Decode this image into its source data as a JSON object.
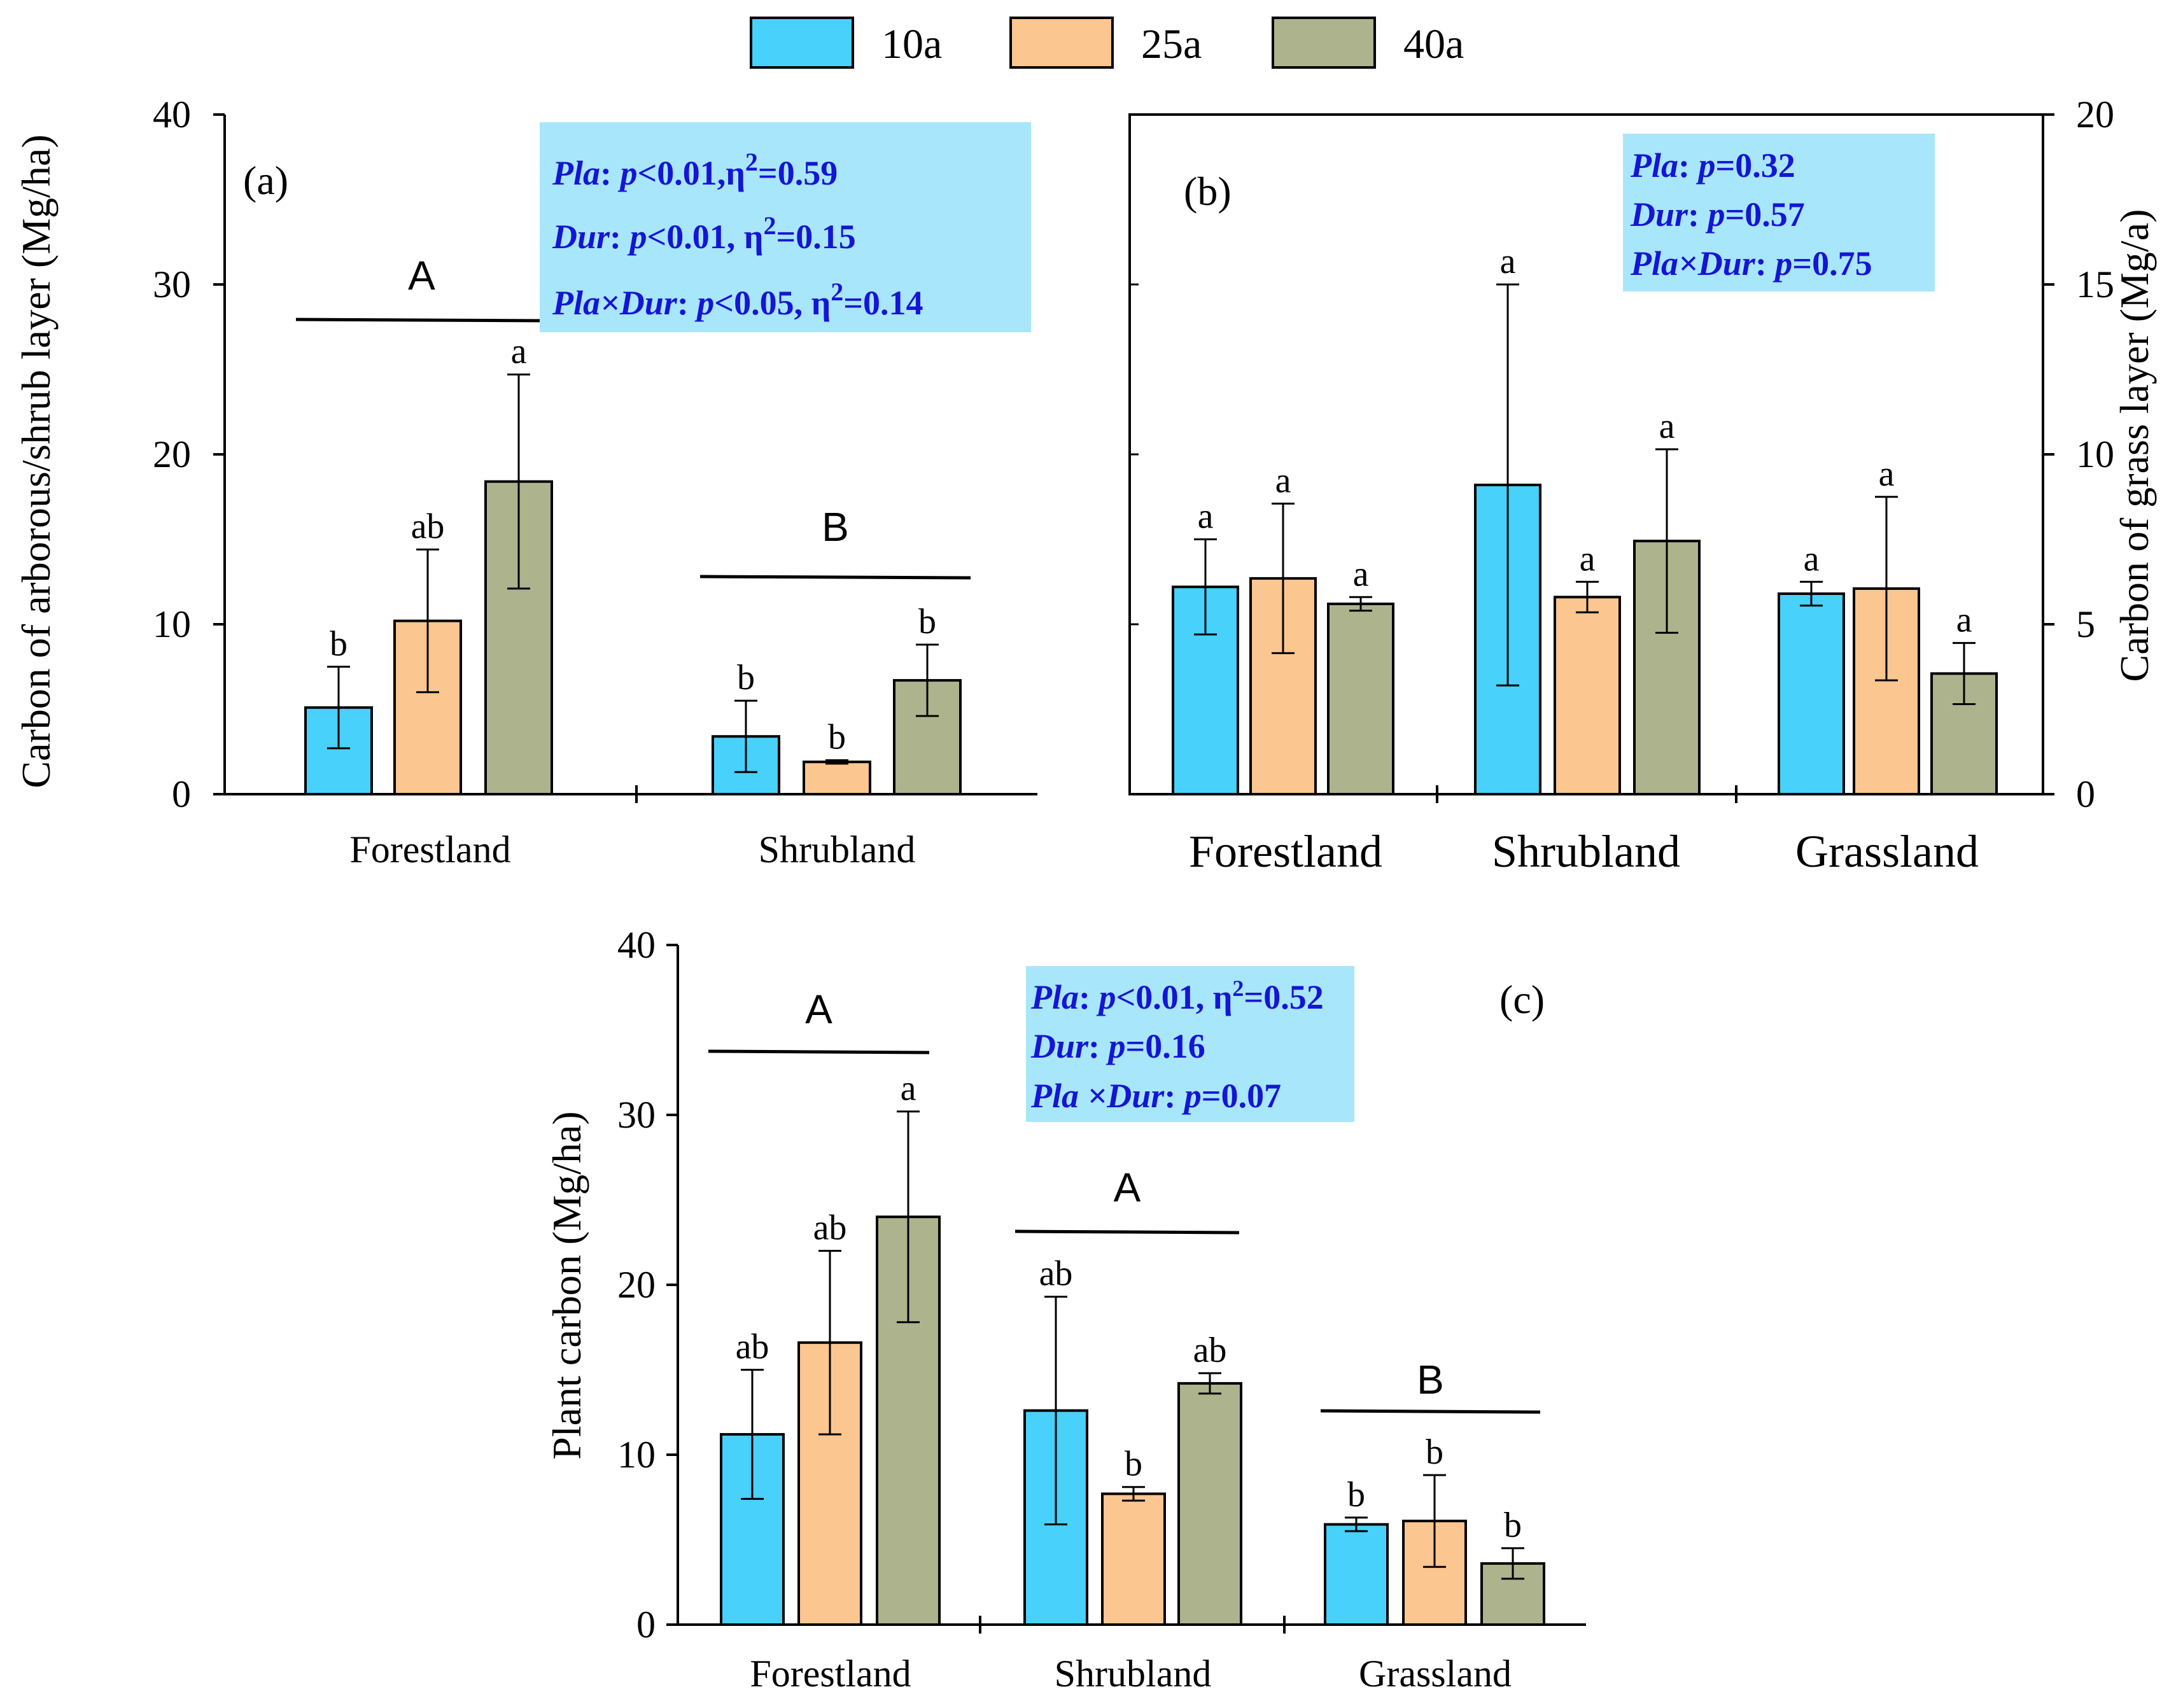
{
  "colors": {
    "c10a": "#47d1fb",
    "c25a": "#fbc68f",
    "c40a": "#adb38c",
    "stat_box": "#a8e6fb",
    "stat_text": "#1515d6"
  },
  "legend": {
    "items": [
      "10a",
      "25a",
      "40a"
    ]
  },
  "chart_data": [
    {
      "type": "bar",
      "panel": "(a)",
      "ylabel": "Carbon of arborous/shrub layer (Mg/ha)",
      "ylim": [
        0,
        40
      ],
      "yticks": [
        "0",
        "10",
        "20",
        "30",
        "40"
      ],
      "categories": [
        "Forestland",
        "Shrubland"
      ],
      "series": [
        {
          "name": "10a",
          "values": [
            5.1,
            3.4
          ],
          "errors": [
            2.4,
            2.1
          ],
          "sig": [
            "b",
            "b"
          ]
        },
        {
          "name": "25a",
          "values": [
            10.2,
            1.9
          ],
          "errors": [
            4.2,
            0.1
          ],
          "sig": [
            "ab",
            "b"
          ]
        },
        {
          "name": "40a",
          "values": [
            18.4,
            6.7
          ],
          "errors": [
            6.3,
            2.1
          ],
          "sig": [
            "a",
            "b"
          ]
        }
      ],
      "group_letters": [
        "A",
        "B"
      ],
      "stats": {
        "l1_pre": "Pla",
        "l1_post": ": ",
        "l1_p": "p",
        "l1_tail": "<0.01,η",
        "l1_sup": "2",
        "l1_end": "=0.59",
        "l2_pre": "Dur",
        "l2_post": ": ",
        "l2_p": "p",
        "l2_tail": "<0.01, η",
        "l2_sup": "2",
        "l2_end": "=0.15",
        "l3_pre": "Pla×Dur",
        "l3_post": ": ",
        "l3_p": "p",
        "l3_tail": "<0.05, η",
        "l3_sup": "2",
        "l3_end": "=0.14"
      }
    },
    {
      "type": "bar",
      "panel": "(b)",
      "ylabel": "Carbon of grass layer (Mg/a)",
      "ylim": [
        0,
        20
      ],
      "yticks": [
        "0",
        "5",
        "10",
        "15",
        "20"
      ],
      "categories": [
        "Forestland",
        "Shrubland",
        "Grassland"
      ],
      "series": [
        {
          "name": "10a",
          "values": [
            6.1,
            9.1,
            5.9
          ],
          "errors": [
            1.4,
            5.9,
            0.35
          ],
          "sig": [
            "a",
            "a",
            "a"
          ]
        },
        {
          "name": "25a",
          "values": [
            6.35,
            5.8,
            6.05
          ],
          "errors": [
            2.2,
            0.45,
            2.7
          ],
          "sig": [
            "a",
            "a",
            "a"
          ]
        },
        {
          "name": "40a",
          "values": [
            5.6,
            7.45,
            3.55
          ],
          "errors": [
            0.2,
            2.7,
            0.9
          ],
          "sig": [
            "a",
            "a",
            "a"
          ]
        }
      ],
      "stats": {
        "l1_pre": "Pla",
        "l1_post": ": ",
        "l1_p": "p",
        "l1_tail": "=0.32",
        "l2_pre": "Dur",
        "l2_post": ": ",
        "l2_p": "p",
        "l2_tail": "=0.57",
        "l3_pre": "Pla×Dur",
        "l3_post": ": ",
        "l3_p": "p",
        "l3_tail": "=0.75"
      }
    },
    {
      "type": "bar",
      "panel": "(c)",
      "ylabel": "Plant carbon (Mg/ha)",
      "ylim": [
        0,
        40
      ],
      "yticks": [
        "0",
        "10",
        "20",
        "30",
        "40"
      ],
      "categories": [
        "Forestland",
        "Shrubland",
        "Grassland"
      ],
      "series": [
        {
          "name": "10a",
          "values": [
            11.2,
            12.6,
            5.9
          ],
          "errors": [
            3.8,
            6.7,
            0.4
          ],
          "sig": [
            "ab",
            "ab",
            "b"
          ]
        },
        {
          "name": "25a",
          "values": [
            16.6,
            7.7,
            6.1
          ],
          "errors": [
            5.4,
            0.4,
            2.7
          ],
          "sig": [
            "ab",
            "b",
            "b"
          ]
        },
        {
          "name": "40a",
          "values": [
            24.0,
            14.2,
            3.6
          ],
          "errors": [
            6.2,
            0.6,
            0.9
          ],
          "sig": [
            "a",
            "ab",
            "b"
          ]
        }
      ],
      "group_letters": [
        "A",
        "A",
        "B"
      ],
      "stats": {
        "l1_pre": "Pla",
        "l1_post": ": ",
        "l1_p": "p",
        "l1_tail": "<0.01, η",
        "l1_sup": "2",
        "l1_end": "=0.52",
        "l2_pre": "Dur",
        "l2_post": ": ",
        "l2_p": "p",
        "l2_tail": "=0.16",
        "l3_pre": "Pla ×Dur",
        "l3_post": ": ",
        "l3_p": "p",
        "l3_tail": "=0.07"
      }
    }
  ]
}
